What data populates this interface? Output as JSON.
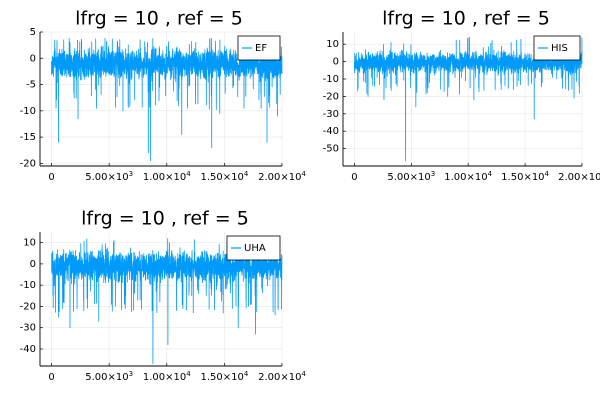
{
  "chart_data": [
    {
      "type": "line",
      "title": "lfrg = 10 , ref = 5",
      "legend": "top-right",
      "grid": true,
      "series": [
        {
          "name": "EF",
          "color": "#009AFA"
        }
      ],
      "xlim": [
        -1000,
        20000
      ],
      "ylim": [
        -20.5,
        5
      ],
      "yticks": [
        5,
        0,
        -5,
        -10,
        -15,
        -20
      ],
      "xticks": [
        0,
        5000,
        10000,
        15000,
        20000
      ],
      "xtick_labels": [
        {
          "base": "0",
          "exp": ""
        },
        {
          "base": "5.00×10",
          "exp": "3"
        },
        {
          "base": "1.00×10",
          "exp": "4"
        },
        {
          "base": "1.50×10",
          "exp": "4"
        },
        {
          "base": "2.00×10",
          "exp": "4"
        }
      ],
      "x_range": [
        0,
        20000
      ],
      "noise_band": [
        -5,
        3
      ],
      "max_value": 3.8,
      "spikes": [
        [
          600,
          -16
        ],
        [
          2300,
          -11.5
        ],
        [
          3900,
          -9.5
        ],
        [
          6200,
          -10
        ],
        [
          8400,
          -18
        ],
        [
          8600,
          -19.5
        ],
        [
          11300,
          -14.5
        ],
        [
          13900,
          -17
        ],
        [
          14600,
          -10.5
        ],
        [
          16700,
          -9.5
        ],
        [
          18700,
          -16
        ],
        [
          19600,
          -11
        ]
      ]
    },
    {
      "type": "line",
      "title": "lfrg = 10 , ref = 5",
      "legend": "top-right",
      "grid": true,
      "series": [
        {
          "name": "HIS",
          "color": "#009AFA"
        }
      ],
      "xlim": [
        -1000,
        20000
      ],
      "ylim": [
        -60,
        17
      ],
      "yticks": [
        10,
        0,
        -10,
        -20,
        -30,
        -40,
        -50
      ],
      "xticks": [
        0,
        5000,
        10000,
        15000,
        20000
      ],
      "xtick_labels": [
        {
          "base": "0",
          "exp": ""
        },
        {
          "base": "5.00×10",
          "exp": "3"
        },
        {
          "base": "1.00×10",
          "exp": "4"
        },
        {
          "base": "1.50×10",
          "exp": "4"
        },
        {
          "base": "2.00×10",
          "exp": "4"
        }
      ],
      "x_range": [
        0,
        20000
      ],
      "noise_band": [
        -9,
        8
      ],
      "max_value": 14,
      "spikes": [
        [
          1200,
          -20
        ],
        [
          2600,
          -22
        ],
        [
          4500,
          -57
        ],
        [
          5400,
          -26
        ],
        [
          8200,
          -20
        ],
        [
          10500,
          -22
        ],
        [
          12900,
          -16
        ],
        [
          15800,
          -33
        ],
        [
          19300,
          -21
        ]
      ]
    },
    {
      "type": "line",
      "title": "lfrg = 10 , ref = 5",
      "legend": "top-right",
      "grid": true,
      "series": [
        {
          "name": "UHA",
          "color": "#009AFA"
        }
      ],
      "xlim": [
        -1000,
        20000
      ],
      "ylim": [
        -48,
        15
      ],
      "yticks": [
        10,
        0,
        -10,
        -20,
        -30,
        -40
      ],
      "xticks": [
        0,
        5000,
        10000,
        15000,
        20000
      ],
      "xtick_labels": [
        {
          "base": "0",
          "exp": ""
        },
        {
          "base": "5.00×10",
          "exp": "3"
        },
        {
          "base": "1.00×10",
          "exp": "4"
        },
        {
          "base": "1.50×10",
          "exp": "4"
        },
        {
          "base": "2.00×10",
          "exp": "4"
        }
      ],
      "x_range": [
        0,
        20000
      ],
      "noise_band": [
        -11,
        9
      ],
      "max_value": 12,
      "spikes": [
        [
          600,
          -25
        ],
        [
          1600,
          -30
        ],
        [
          2800,
          -22
        ],
        [
          4100,
          -27
        ],
        [
          6400,
          -21
        ],
        [
          8800,
          -47
        ],
        [
          10100,
          -38
        ],
        [
          11400,
          -21
        ],
        [
          14900,
          -23
        ],
        [
          16200,
          -30
        ],
        [
          17700,
          -33
        ],
        [
          19400,
          -24
        ]
      ]
    }
  ]
}
